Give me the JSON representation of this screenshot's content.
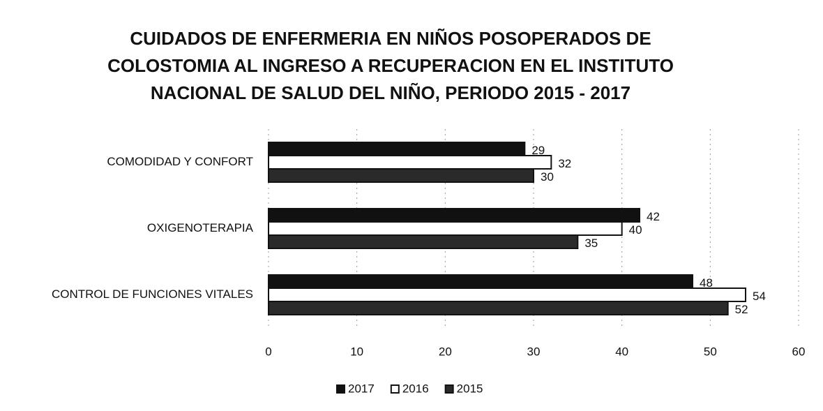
{
  "chart_data": {
    "type": "hbar",
    "title": "CUIDADOS DE ENFERMERIA EN NIÑOS POSOPERADOS DE COLOSTOMIA AL INGRESO A RECUPERACION EN EL INSTITUTO NACIONAL DE SALUD DEL NIÑO, PERIODO 2015 - 2017",
    "categories": [
      "COMODIDAD Y CONFORT",
      "OXIGENOTERAPIA",
      "CONTROL DE FUNCIONES VITALES"
    ],
    "series": [
      {
        "name": "2017",
        "color": "#111111",
        "values": [
          29,
          42,
          48
        ]
      },
      {
        "name": "2016",
        "color": "#ffffff",
        "values": [
          32,
          40,
          54
        ]
      },
      {
        "name": "2015",
        "color": "#2a2a2a",
        "values": [
          30,
          35,
          52
        ]
      }
    ],
    "xlim": [
      0,
      60
    ],
    "xticks": [
      0,
      10,
      20,
      30,
      40,
      50,
      60
    ],
    "grid": true,
    "legend": "bottom"
  }
}
